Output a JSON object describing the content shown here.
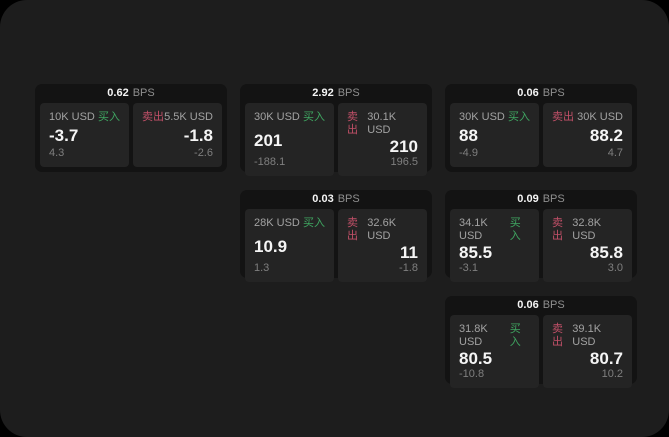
{
  "labels": {
    "bps": "BPS",
    "buy": "买入",
    "sell": "卖出"
  },
  "colors": {
    "background": "#000000",
    "panel": "#1d1d1d",
    "card": "#131313",
    "cell": "#242424",
    "buy": "#3fa661",
    "sell": "#c25068",
    "value_text": "#f5f5f5",
    "muted_text": "#a2a2a2",
    "dim_text": "#7f7f7f"
  },
  "cards": [
    {
      "bps": "0.62",
      "buy": {
        "notional": "10K USD",
        "value": "-3.7",
        "sub": "4.3"
      },
      "sell": {
        "notional": "5.5K USD",
        "value": "-1.8",
        "sub": "-2.6"
      }
    },
    {
      "bps": "2.92",
      "buy": {
        "notional": "30K USD",
        "value": "201",
        "sub": "-188.1"
      },
      "sell": {
        "notional": "30.1K USD",
        "value": "210",
        "sub": "196.5"
      }
    },
    {
      "bps": "0.06",
      "buy": {
        "notional": "30K USD",
        "value": "88",
        "sub": "-4.9"
      },
      "sell": {
        "notional": "30K USD",
        "value": "88.2",
        "sub": "4.7"
      }
    },
    {
      "bps": "0.03",
      "buy": {
        "notional": "28K USD",
        "value": "10.9",
        "sub": "1.3"
      },
      "sell": {
        "notional": "32.6K USD",
        "value": "11",
        "sub": "-1.8"
      }
    },
    {
      "bps": "0.09",
      "buy": {
        "notional": "34.1K USD",
        "value": "85.5",
        "sub": "-3.1"
      },
      "sell": {
        "notional": "32.8K USD",
        "value": "85.8",
        "sub": "3.0"
      }
    },
    {
      "bps": "0.06",
      "buy": {
        "notional": "31.8K USD",
        "value": "80.5",
        "sub": "-10.8"
      },
      "sell": {
        "notional": "39.1K USD",
        "value": "80.7",
        "sub": "10.2"
      }
    }
  ]
}
